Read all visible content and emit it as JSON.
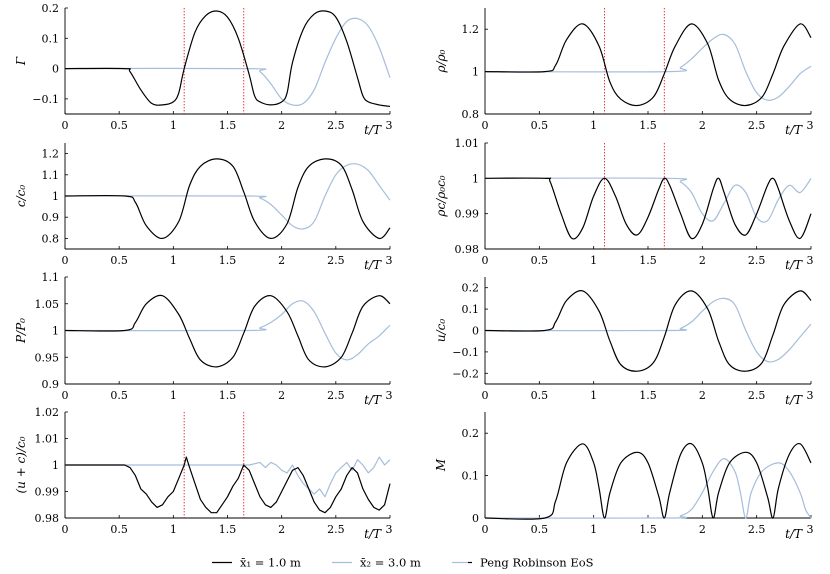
{
  "colors": {
    "black": "#000000",
    "blue": "#a6bddb",
    "marker": "#e41a1c",
    "axis": "#000000"
  },
  "legend": {
    "entries": [
      {
        "label": "x̄₁ = 1.0 m",
        "color": "#000000"
      },
      {
        "label": "x̄₂ = 3.0 m",
        "color": "#a6bddb"
      },
      {
        "label": "Peng Robinson EoS",
        "color": "#000000"
      }
    ]
  },
  "xaxis": {
    "label": "t/T",
    "lim": [
      0,
      3
    ],
    "ticks": [
      0,
      0.5,
      1,
      1.5,
      2,
      2.5,
      3
    ],
    "tick_labels": [
      "0",
      "0.5",
      "1",
      "1.5",
      "2",
      "2.5",
      "3"
    ]
  },
  "chart_data": [
    {
      "id": "gamma",
      "type": "line",
      "ylabel": "Γ",
      "xlabel": "t/T",
      "ylim": [
        -0.15,
        0.2
      ],
      "yticks": [
        -0.1,
        0,
        0.1,
        0.2
      ],
      "ytick_labels": [
        "−0.1",
        "0",
        "0.1",
        "0.2"
      ],
      "markers_x": [
        1.1,
        1.65
      ],
      "series": [
        {
          "color": "#000000",
          "x": [
            0,
            0.55,
            0.6,
            0.7,
            0.8,
            0.9,
            1.0,
            1.05,
            1.1,
            1.2,
            1.3,
            1.4,
            1.5,
            1.6,
            1.7,
            1.75,
            1.8,
            1.9,
            2.0,
            2.05,
            2.1,
            2.2,
            2.3,
            2.4,
            2.5,
            2.6,
            2.7,
            2.75,
            2.8,
            2.9,
            3.0
          ],
          "y": [
            0,
            0,
            -0.01,
            -0.07,
            -0.115,
            -0.12,
            -0.11,
            -0.08,
            0.0,
            0.12,
            0.175,
            0.19,
            0.17,
            0.1,
            -0.02,
            -0.09,
            -0.11,
            -0.12,
            -0.11,
            -0.08,
            0.02,
            0.13,
            0.18,
            0.19,
            0.17,
            0.09,
            -0.03,
            -0.09,
            -0.11,
            -0.12,
            -0.125
          ]
        },
        {
          "color": "#a6bddb",
          "x": [
            0,
            1.7,
            1.8,
            1.9,
            2.0,
            2.1,
            2.2,
            2.3,
            2.4,
            2.5,
            2.6,
            2.7,
            2.8,
            2.9,
            3.0
          ],
          "y": [
            0,
            0,
            -0.01,
            -0.05,
            -0.1,
            -0.12,
            -0.115,
            -0.07,
            0.02,
            0.1,
            0.155,
            0.165,
            0.14,
            0.07,
            -0.03
          ]
        }
      ]
    },
    {
      "id": "rho",
      "type": "line",
      "ylabel": "ρ/ρ₀",
      "xlabel": "t/T",
      "ylim": [
        0.8,
        1.3
      ],
      "yticks": [
        0.8,
        1,
        1.2
      ],
      "ytick_labels": [
        "0.8",
        "1",
        "1.2"
      ],
      "markers_x": [
        1.1,
        1.65
      ],
      "series": [
        {
          "color": "#000000",
          "x": [
            0,
            0.55,
            0.65,
            0.75,
            0.9,
            1.05,
            1.15,
            1.25,
            1.4,
            1.55,
            1.65,
            1.75,
            1.9,
            2.05,
            2.15,
            2.25,
            2.4,
            2.55,
            2.65,
            2.75,
            2.9,
            3.0
          ],
          "y": [
            1.0,
            1.0,
            1.03,
            1.15,
            1.225,
            1.12,
            0.95,
            0.87,
            0.84,
            0.88,
            0.99,
            1.12,
            1.225,
            1.13,
            0.96,
            0.87,
            0.84,
            0.88,
            0.99,
            1.12,
            1.225,
            1.16
          ]
        },
        {
          "color": "#a6bddb",
          "x": [
            0,
            1.7,
            1.8,
            1.9,
            2.0,
            2.1,
            2.2,
            2.3,
            2.4,
            2.5,
            2.6,
            2.7,
            2.8,
            2.9,
            3.0
          ],
          "y": [
            1.0,
            1.0,
            1.02,
            1.06,
            1.11,
            1.155,
            1.175,
            1.13,
            1.0,
            0.9,
            0.865,
            0.88,
            0.93,
            0.99,
            1.025
          ]
        }
      ]
    },
    {
      "id": "c",
      "type": "line",
      "ylabel": "c/c₀",
      "xlabel": "t/T",
      "ylim": [
        0.75,
        1.25
      ],
      "yticks": [
        0.8,
        0.9,
        1,
        1.1,
        1.2
      ],
      "ytick_labels": [
        "0.8",
        "0.9",
        "1",
        "1.1",
        "1.2"
      ],
      "series": [
        {
          "color": "#000000",
          "x": [
            0,
            0.55,
            0.65,
            0.75,
            0.9,
            1.05,
            1.15,
            1.25,
            1.4,
            1.55,
            1.65,
            1.75,
            1.9,
            2.05,
            2.15,
            2.25,
            2.4,
            2.55,
            2.65,
            2.75,
            2.9,
            3.0
          ],
          "y": [
            1.0,
            1.0,
            0.97,
            0.86,
            0.8,
            0.88,
            1.05,
            1.14,
            1.175,
            1.14,
            1.02,
            0.88,
            0.8,
            0.87,
            1.04,
            1.14,
            1.175,
            1.145,
            1.03,
            0.88,
            0.8,
            0.85
          ]
        },
        {
          "color": "#a6bddb",
          "x": [
            0,
            1.7,
            1.8,
            1.9,
            2.0,
            2.1,
            2.2,
            2.3,
            2.4,
            2.5,
            2.6,
            2.7,
            2.8,
            2.9,
            3.0
          ],
          "y": [
            1.0,
            1.0,
            0.99,
            0.96,
            0.91,
            0.86,
            0.845,
            0.88,
            1.0,
            1.1,
            1.145,
            1.15,
            1.12,
            1.05,
            0.98
          ]
        }
      ]
    },
    {
      "id": "rhoc",
      "type": "line",
      "ylabel": "ρc/ρ₀c₀",
      "xlabel": "t/T",
      "ylim": [
        0.98,
        1.01
      ],
      "yticks": [
        0.98,
        0.99,
        1,
        1.01
      ],
      "ytick_labels": [
        "0.98",
        "0.99",
        "1",
        "1.01"
      ],
      "markers_x": [
        1.1,
        1.65
      ],
      "series": [
        {
          "color": "#000000",
          "x": [
            0,
            0.55,
            0.6,
            0.7,
            0.8,
            0.9,
            1.0,
            1.1,
            1.2,
            1.3,
            1.4,
            1.5,
            1.6,
            1.65,
            1.7,
            1.8,
            1.9,
            2.0,
            2.1,
            2.15,
            2.2,
            2.3,
            2.4,
            2.5,
            2.6,
            2.65,
            2.7,
            2.8,
            2.9,
            3.0
          ],
          "y": [
            1.0,
            1.0,
            0.999,
            0.99,
            0.983,
            0.986,
            0.995,
            1.0,
            0.995,
            0.987,
            0.984,
            0.989,
            0.997,
            1.0,
            0.998,
            0.99,
            0.983,
            0.987,
            0.997,
            1.0,
            0.996,
            0.987,
            0.984,
            0.99,
            0.998,
            1.0,
            0.997,
            0.988,
            0.983,
            0.99
          ]
        },
        {
          "color": "#a6bddb",
          "x": [
            0,
            1.7,
            1.8,
            1.9,
            2.0,
            2.1,
            2.2,
            2.3,
            2.4,
            2.5,
            2.6,
            2.7,
            2.8,
            2.9,
            3.0
          ],
          "y": [
            1.0,
            1.0,
            0.999,
            0.996,
            0.99,
            0.988,
            0.993,
            0.998,
            0.996,
            0.989,
            0.988,
            0.994,
            0.998,
            0.996,
            1.0
          ]
        }
      ]
    },
    {
      "id": "P",
      "type": "line",
      "ylabel": "P/P₀",
      "xlabel": "t/T",
      "ylim": [
        0.9,
        1.1
      ],
      "yticks": [
        0.9,
        0.95,
        1,
        1.05,
        1.1
      ],
      "ytick_labels": [
        "0.9",
        "0.95",
        "1",
        "1.05",
        "1.1"
      ],
      "series": [
        {
          "color": "#000000",
          "x": [
            0,
            0.55,
            0.65,
            0.75,
            0.9,
            1.05,
            1.15,
            1.25,
            1.4,
            1.55,
            1.65,
            1.75,
            1.9,
            2.05,
            2.15,
            2.25,
            2.4,
            2.55,
            2.65,
            2.75,
            2.9,
            3.0
          ],
          "y": [
            1.0,
            1.0,
            1.015,
            1.05,
            1.065,
            1.03,
            0.985,
            0.945,
            0.932,
            0.95,
            0.995,
            1.045,
            1.065,
            1.035,
            0.99,
            0.945,
            0.932,
            0.95,
            0.995,
            1.045,
            1.065,
            1.05
          ]
        },
        {
          "color": "#a6bddb",
          "x": [
            0,
            1.7,
            1.8,
            1.9,
            2.0,
            2.1,
            2.2,
            2.3,
            2.4,
            2.5,
            2.6,
            2.7,
            2.8,
            2.9,
            3.0
          ],
          "y": [
            1.0,
            1.0,
            1.005,
            1.015,
            1.03,
            1.05,
            1.055,
            1.035,
            0.995,
            0.958,
            0.945,
            0.955,
            0.975,
            0.99,
            1.01
          ]
        }
      ]
    },
    {
      "id": "u",
      "type": "line",
      "ylabel": "u/c₀",
      "xlabel": "t/T",
      "ylim": [
        -0.25,
        0.25
      ],
      "yticks": [
        -0.2,
        -0.1,
        0,
        0.1,
        0.2
      ],
      "ytick_labels": [
        "−0.2",
        "−0.1",
        "0",
        "0.1",
        "0.2"
      ],
      "series": [
        {
          "color": "#000000",
          "x": [
            0,
            0.55,
            0.65,
            0.75,
            0.9,
            1.05,
            1.15,
            1.25,
            1.4,
            1.55,
            1.65,
            1.75,
            1.9,
            2.05,
            2.15,
            2.25,
            2.4,
            2.55,
            2.65,
            2.75,
            2.9,
            3.0
          ],
          "y": [
            0,
            0,
            0.04,
            0.14,
            0.185,
            0.09,
            -0.05,
            -0.16,
            -0.19,
            -0.15,
            -0.03,
            0.12,
            0.185,
            0.1,
            -0.05,
            -0.16,
            -0.19,
            -0.15,
            -0.02,
            0.12,
            0.185,
            0.14
          ]
        },
        {
          "color": "#a6bddb",
          "x": [
            0,
            1.7,
            1.8,
            1.9,
            2.0,
            2.1,
            2.2,
            2.3,
            2.4,
            2.5,
            2.6,
            2.7,
            2.8,
            2.9,
            3.0
          ],
          "y": [
            0,
            0,
            0.01,
            0.04,
            0.09,
            0.135,
            0.15,
            0.12,
            0.0,
            -0.1,
            -0.145,
            -0.135,
            -0.09,
            -0.03,
            0.03
          ]
        }
      ]
    },
    {
      "id": "uc",
      "type": "line",
      "ylabel": "(u + c)/c₀",
      "xlabel": "t/T",
      "ylim": [
        0.98,
        1.02
      ],
      "yticks": [
        0.98,
        0.99,
        1,
        1.01,
        1.02
      ],
      "ytick_labels": [
        "0.98",
        "0.99",
        "1",
        "1.01",
        "1.02"
      ],
      "markers_x": [
        1.1,
        1.65
      ],
      "series": [
        {
          "color": "#000000",
          "x": [
            0,
            0.55,
            0.6,
            0.65,
            0.7,
            0.75,
            0.8,
            0.85,
            0.9,
            0.95,
            1.0,
            1.05,
            1.1,
            1.12,
            1.15,
            1.2,
            1.25,
            1.3,
            1.35,
            1.4,
            1.45,
            1.5,
            1.55,
            1.6,
            1.65,
            1.7,
            1.75,
            1.8,
            1.85,
            1.9,
            1.95,
            2.0,
            2.05,
            2.1,
            2.15,
            2.2,
            2.25,
            2.3,
            2.35,
            2.4,
            2.45,
            2.5,
            2.55,
            2.6,
            2.65,
            2.7,
            2.75,
            2.8,
            2.85,
            2.9,
            2.95,
            3.0
          ],
          "y": [
            1.0,
            1.0,
            0.999,
            0.996,
            0.991,
            0.989,
            0.986,
            0.984,
            0.985,
            0.988,
            0.99,
            0.995,
            1.0,
            1.003,
            0.999,
            0.993,
            0.987,
            0.984,
            0.982,
            0.982,
            0.985,
            0.988,
            0.992,
            0.995,
            1.0,
            0.998,
            0.993,
            0.988,
            0.985,
            0.984,
            0.986,
            0.99,
            0.994,
            0.998,
            0.999,
            0.996,
            0.991,
            0.986,
            0.983,
            0.982,
            0.984,
            0.988,
            0.991,
            0.996,
            0.999,
            0.997,
            0.991,
            0.987,
            0.984,
            0.983,
            0.985,
            0.993
          ]
        },
        {
          "color": "#a6bddb",
          "x": [
            0,
            1.7,
            1.8,
            1.85,
            1.9,
            1.95,
            2.0,
            2.05,
            2.1,
            2.15,
            2.2,
            2.25,
            2.3,
            2.35,
            2.4,
            2.45,
            2.5,
            2.55,
            2.6,
            2.65,
            2.7,
            2.75,
            2.8,
            2.85,
            2.9,
            2.95,
            3.0
          ],
          "y": [
            1.0,
            1.0,
            1.001,
            0.999,
            1.001,
            1.0,
            0.998,
            0.997,
            1.0,
            0.996,
            0.993,
            0.991,
            0.989,
            0.991,
            0.988,
            0.993,
            0.997,
            0.999,
            1.001,
            0.998,
            1.002,
            1.0,
            0.997,
            0.999,
            1.003,
            1.0,
            1.002
          ]
        }
      ]
    },
    {
      "id": "M",
      "type": "line",
      "ylabel": "M",
      "xlabel": "t/T",
      "ylim": [
        0,
        0.25
      ],
      "yticks": [
        0,
        0.1,
        0.2
      ],
      "ytick_labels": [
        "0",
        "0.1",
        "0.2"
      ],
      "series": [
        {
          "color": "#000000",
          "x": [
            0,
            0.55,
            0.65,
            0.75,
            0.9,
            1.0,
            1.05,
            1.1,
            1.15,
            1.25,
            1.4,
            1.5,
            1.6,
            1.65,
            1.7,
            1.8,
            1.9,
            2.0,
            2.05,
            2.1,
            2.15,
            2.25,
            2.4,
            2.5,
            2.6,
            2.65,
            2.7,
            2.8,
            2.9,
            3.0
          ],
          "y": [
            0,
            0,
            0.04,
            0.13,
            0.175,
            0.13,
            0.07,
            0.0,
            0.06,
            0.13,
            0.155,
            0.13,
            0.05,
            0.0,
            0.06,
            0.15,
            0.175,
            0.13,
            0.07,
            0.0,
            0.06,
            0.13,
            0.155,
            0.13,
            0.05,
            0.0,
            0.07,
            0.15,
            0.175,
            0.13
          ]
        },
        {
          "color": "#a6bddb",
          "x": [
            0,
            1.7,
            1.8,
            1.9,
            2.0,
            2.1,
            2.2,
            2.3,
            2.35,
            2.4,
            2.45,
            2.55,
            2.7,
            2.8,
            2.9,
            2.95,
            3.0
          ],
          "y": [
            0,
            0,
            0.005,
            0.02,
            0.06,
            0.11,
            0.14,
            0.11,
            0.06,
            0.0,
            0.06,
            0.11,
            0.13,
            0.11,
            0.06,
            0.02,
            0.0
          ]
        }
      ]
    }
  ]
}
